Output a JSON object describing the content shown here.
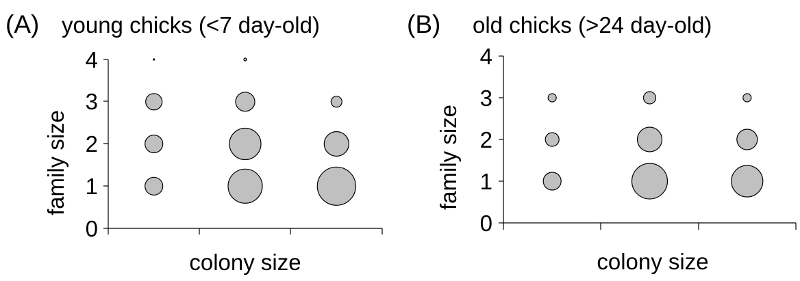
{
  "chart_data": [
    {
      "type": "scatter",
      "panel_label": "(A)",
      "title": "young chicks (<7 day-old)",
      "xlabel": "colony size",
      "ylabel": "family size",
      "ylim": [
        0,
        4
      ],
      "yticks": [
        "0",
        "1",
        "2",
        "3",
        "4"
      ],
      "x_categories": 3,
      "grid": false,
      "legend": "none",
      "bubble_fill": "#c0c0c0",
      "bubble_stroke": "#000000",
      "points": [
        {
          "x": 1,
          "y": 1,
          "size": 13
        },
        {
          "x": 1,
          "y": 2,
          "size": 13
        },
        {
          "x": 1,
          "y": 3,
          "size": 12
        },
        {
          "x": 1,
          "y": 4,
          "size": 1
        },
        {
          "x": 2,
          "y": 1,
          "size": 25
        },
        {
          "x": 2,
          "y": 2,
          "size": 23
        },
        {
          "x": 2,
          "y": 3,
          "size": 14
        },
        {
          "x": 2,
          "y": 4,
          "size": 2
        },
        {
          "x": 3,
          "y": 1,
          "size": 28
        },
        {
          "x": 3,
          "y": 2,
          "size": 18
        },
        {
          "x": 3,
          "y": 3,
          "size": 8
        }
      ]
    },
    {
      "type": "scatter",
      "panel_label": "(B)",
      "title": "old chicks (>24 day-old)",
      "xlabel": "colony size",
      "ylabel": "family size",
      "ylim": [
        0,
        4
      ],
      "yticks": [
        "0",
        "1",
        "2",
        "3",
        "4"
      ],
      "x_categories": 3,
      "grid": false,
      "legend": "none",
      "bubble_fill": "#c0c0c0",
      "bubble_stroke": "#000000",
      "points": [
        {
          "x": 1,
          "y": 1,
          "size": 13
        },
        {
          "x": 1,
          "y": 2,
          "size": 10
        },
        {
          "x": 1,
          "y": 3,
          "size": 6
        },
        {
          "x": 2,
          "y": 1,
          "size": 26
        },
        {
          "x": 2,
          "y": 2,
          "size": 18
        },
        {
          "x": 2,
          "y": 3,
          "size": 9
        },
        {
          "x": 3,
          "y": 1,
          "size": 23
        },
        {
          "x": 3,
          "y": 2,
          "size": 15
        },
        {
          "x": 3,
          "y": 3,
          "size": 6
        }
      ]
    }
  ]
}
